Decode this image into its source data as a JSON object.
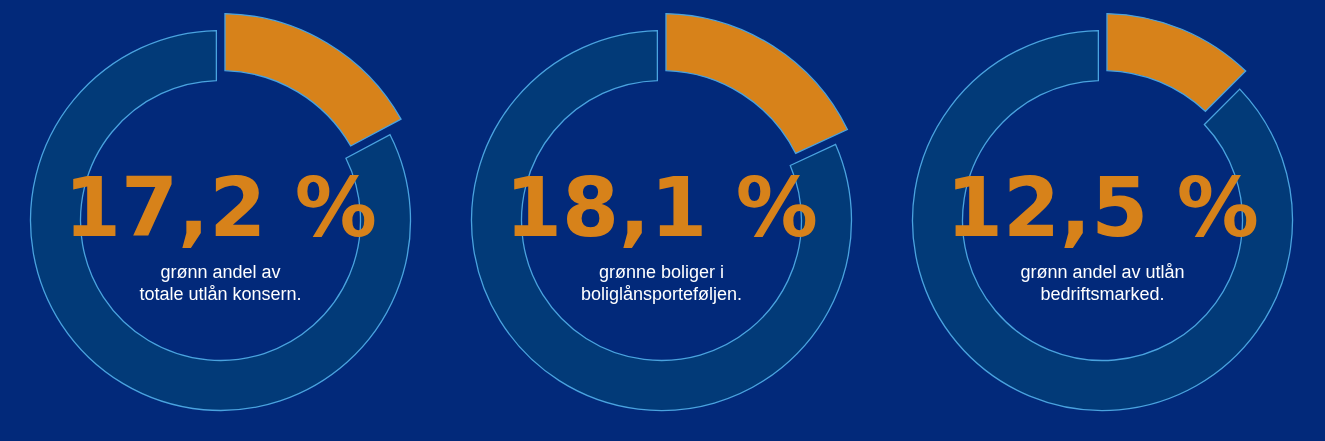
{
  "chart_data": [
    {
      "type": "donut",
      "categories": [
        null,
        null
      ],
      "values": [
        17.2,
        82.8
      ],
      "colors": [
        "#d7821a",
        "#023a78"
      ],
      "value_labels": [
        "17,2 %",
        null
      ],
      "annotations": [
        "grønn andel av\ntotale utlån konsern."
      ]
    },
    {
      "type": "donut",
      "categories": [
        null,
        null
      ],
      "values": [
        18.1,
        81.9
      ],
      "colors": [
        "#d7821a",
        "#023a78"
      ],
      "value_labels": [
        "18,1 %",
        null
      ],
      "annotations": [
        "grønne boliger i\nboliglånsporteføljen."
      ]
    },
    {
      "type": "donut",
      "categories": [
        null,
        null
      ],
      "values": [
        12.5,
        87.5
      ],
      "colors": [
        "#d7821a",
        "#023a78"
      ],
      "value_labels": [
        "12,5 %",
        null
      ],
      "annotations": [
        "grønn andel av utlån\nbedriftsmarked."
      ]
    }
  ]
}
